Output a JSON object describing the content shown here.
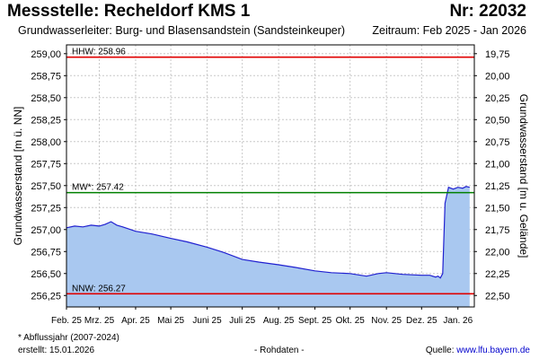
{
  "header": {
    "title": "Messstelle: Recheldorf KMS 1",
    "nr": "Nr: 22032",
    "aquifer": "Grundwasserleiter:   Burg- und Blasensandstein (Sandsteinkeuper)",
    "period": "Zeitraum: Feb 2025 - Jan 2026"
  },
  "footer": {
    "footnote": "* Abflussjahr (2007-2024)",
    "created": "erstellt:  15.01.2026",
    "raw_data": "- Rohdaten -",
    "source_label": "Quelle: ",
    "source_link": "www.lfu.bayern.de"
  },
  "colors": {
    "series_line": "#2020d0",
    "series_fill": "#a9c8f0",
    "hhw": "#e00000",
    "mw": "#008000",
    "nnw": "#e00000",
    "grid": "#c8c8c8"
  },
  "chart_data": {
    "type": "area",
    "title": "",
    "ylabel_left": "Grundwasserstand [m ü. NN]",
    "ylabel_right": "Grundwasserstand [m u. Gelände]",
    "ylim": [
      256.12,
      259.1
    ],
    "yticks_left": [
      "256,25",
      "256,50",
      "256,75",
      "257,00",
      "257,25",
      "257,50",
      "257,75",
      "258,00",
      "258,25",
      "258,50",
      "258,75",
      "259,00"
    ],
    "yticks_left_values": [
      256.25,
      256.5,
      256.75,
      257.0,
      257.25,
      257.5,
      257.75,
      258.0,
      258.25,
      258.5,
      258.75,
      259.0
    ],
    "yticks_right": [
      "22,50",
      "22,25",
      "22,00",
      "21,75",
      "21,50",
      "21,25",
      "21,00",
      "20,75",
      "20,50",
      "20,25",
      "20,00",
      "19,75"
    ],
    "xlim": [
      "2025-02-01",
      "2026-01-15"
    ],
    "xticks": [
      "Feb. 25",
      "Mrz. 25",
      "Apr. 25",
      "Mai 25",
      "Juni 25",
      "Juli 25",
      "Aug. 25",
      "Sept. 25",
      "Okt. 25",
      "Nov. 25",
      "Dez. 25",
      "Jan. 26"
    ],
    "xtick_dates": [
      "2025-02-01",
      "2025-03-01",
      "2025-04-01",
      "2025-05-01",
      "2025-06-01",
      "2025-07-01",
      "2025-08-01",
      "2025-09-01",
      "2025-10-01",
      "2025-11-01",
      "2025-12-01",
      "2026-01-01"
    ],
    "reference_lines": [
      {
        "label": "HHW: 258.96",
        "value": 258.96,
        "color": "#e00000"
      },
      {
        "label": "MW*: 257.42",
        "value": 257.42,
        "color": "#008000"
      },
      {
        "label": "NNW: 256.27",
        "value": 256.27,
        "color": "#e00000"
      }
    ],
    "grid": true,
    "series": [
      {
        "x": [
          "2025-02-01",
          "2025-02-08",
          "2025-02-15",
          "2025-02-22",
          "2025-03-01",
          "2025-03-06",
          "2025-03-11",
          "2025-03-16",
          "2025-03-21",
          "2025-04-01",
          "2025-04-15",
          "2025-05-01",
          "2025-05-15",
          "2025-06-01",
          "2025-06-15",
          "2025-07-01",
          "2025-07-15",
          "2025-08-01",
          "2025-08-15",
          "2025-09-01",
          "2025-09-15",
          "2025-10-01",
          "2025-10-15",
          "2025-10-25",
          "2025-11-01",
          "2025-11-15",
          "2025-12-01",
          "2025-12-08",
          "2025-12-13",
          "2025-12-15",
          "2025-12-17",
          "2025-12-19",
          "2025-12-21",
          "2025-12-24",
          "2025-12-28",
          "2026-01-01",
          "2026-01-05",
          "2026-01-08",
          "2026-01-11"
        ],
        "values": [
          257.02,
          257.04,
          257.03,
          257.05,
          257.04,
          257.06,
          257.09,
          257.05,
          257.03,
          256.98,
          256.95,
          256.9,
          256.86,
          256.8,
          256.74,
          256.66,
          256.63,
          256.6,
          256.57,
          256.53,
          256.51,
          256.5,
          256.47,
          256.5,
          256.51,
          256.49,
          256.48,
          256.48,
          256.46,
          256.47,
          256.45,
          256.5,
          257.3,
          257.48,
          257.46,
          257.48,
          257.47,
          257.49,
          257.48
        ]
      }
    ]
  }
}
